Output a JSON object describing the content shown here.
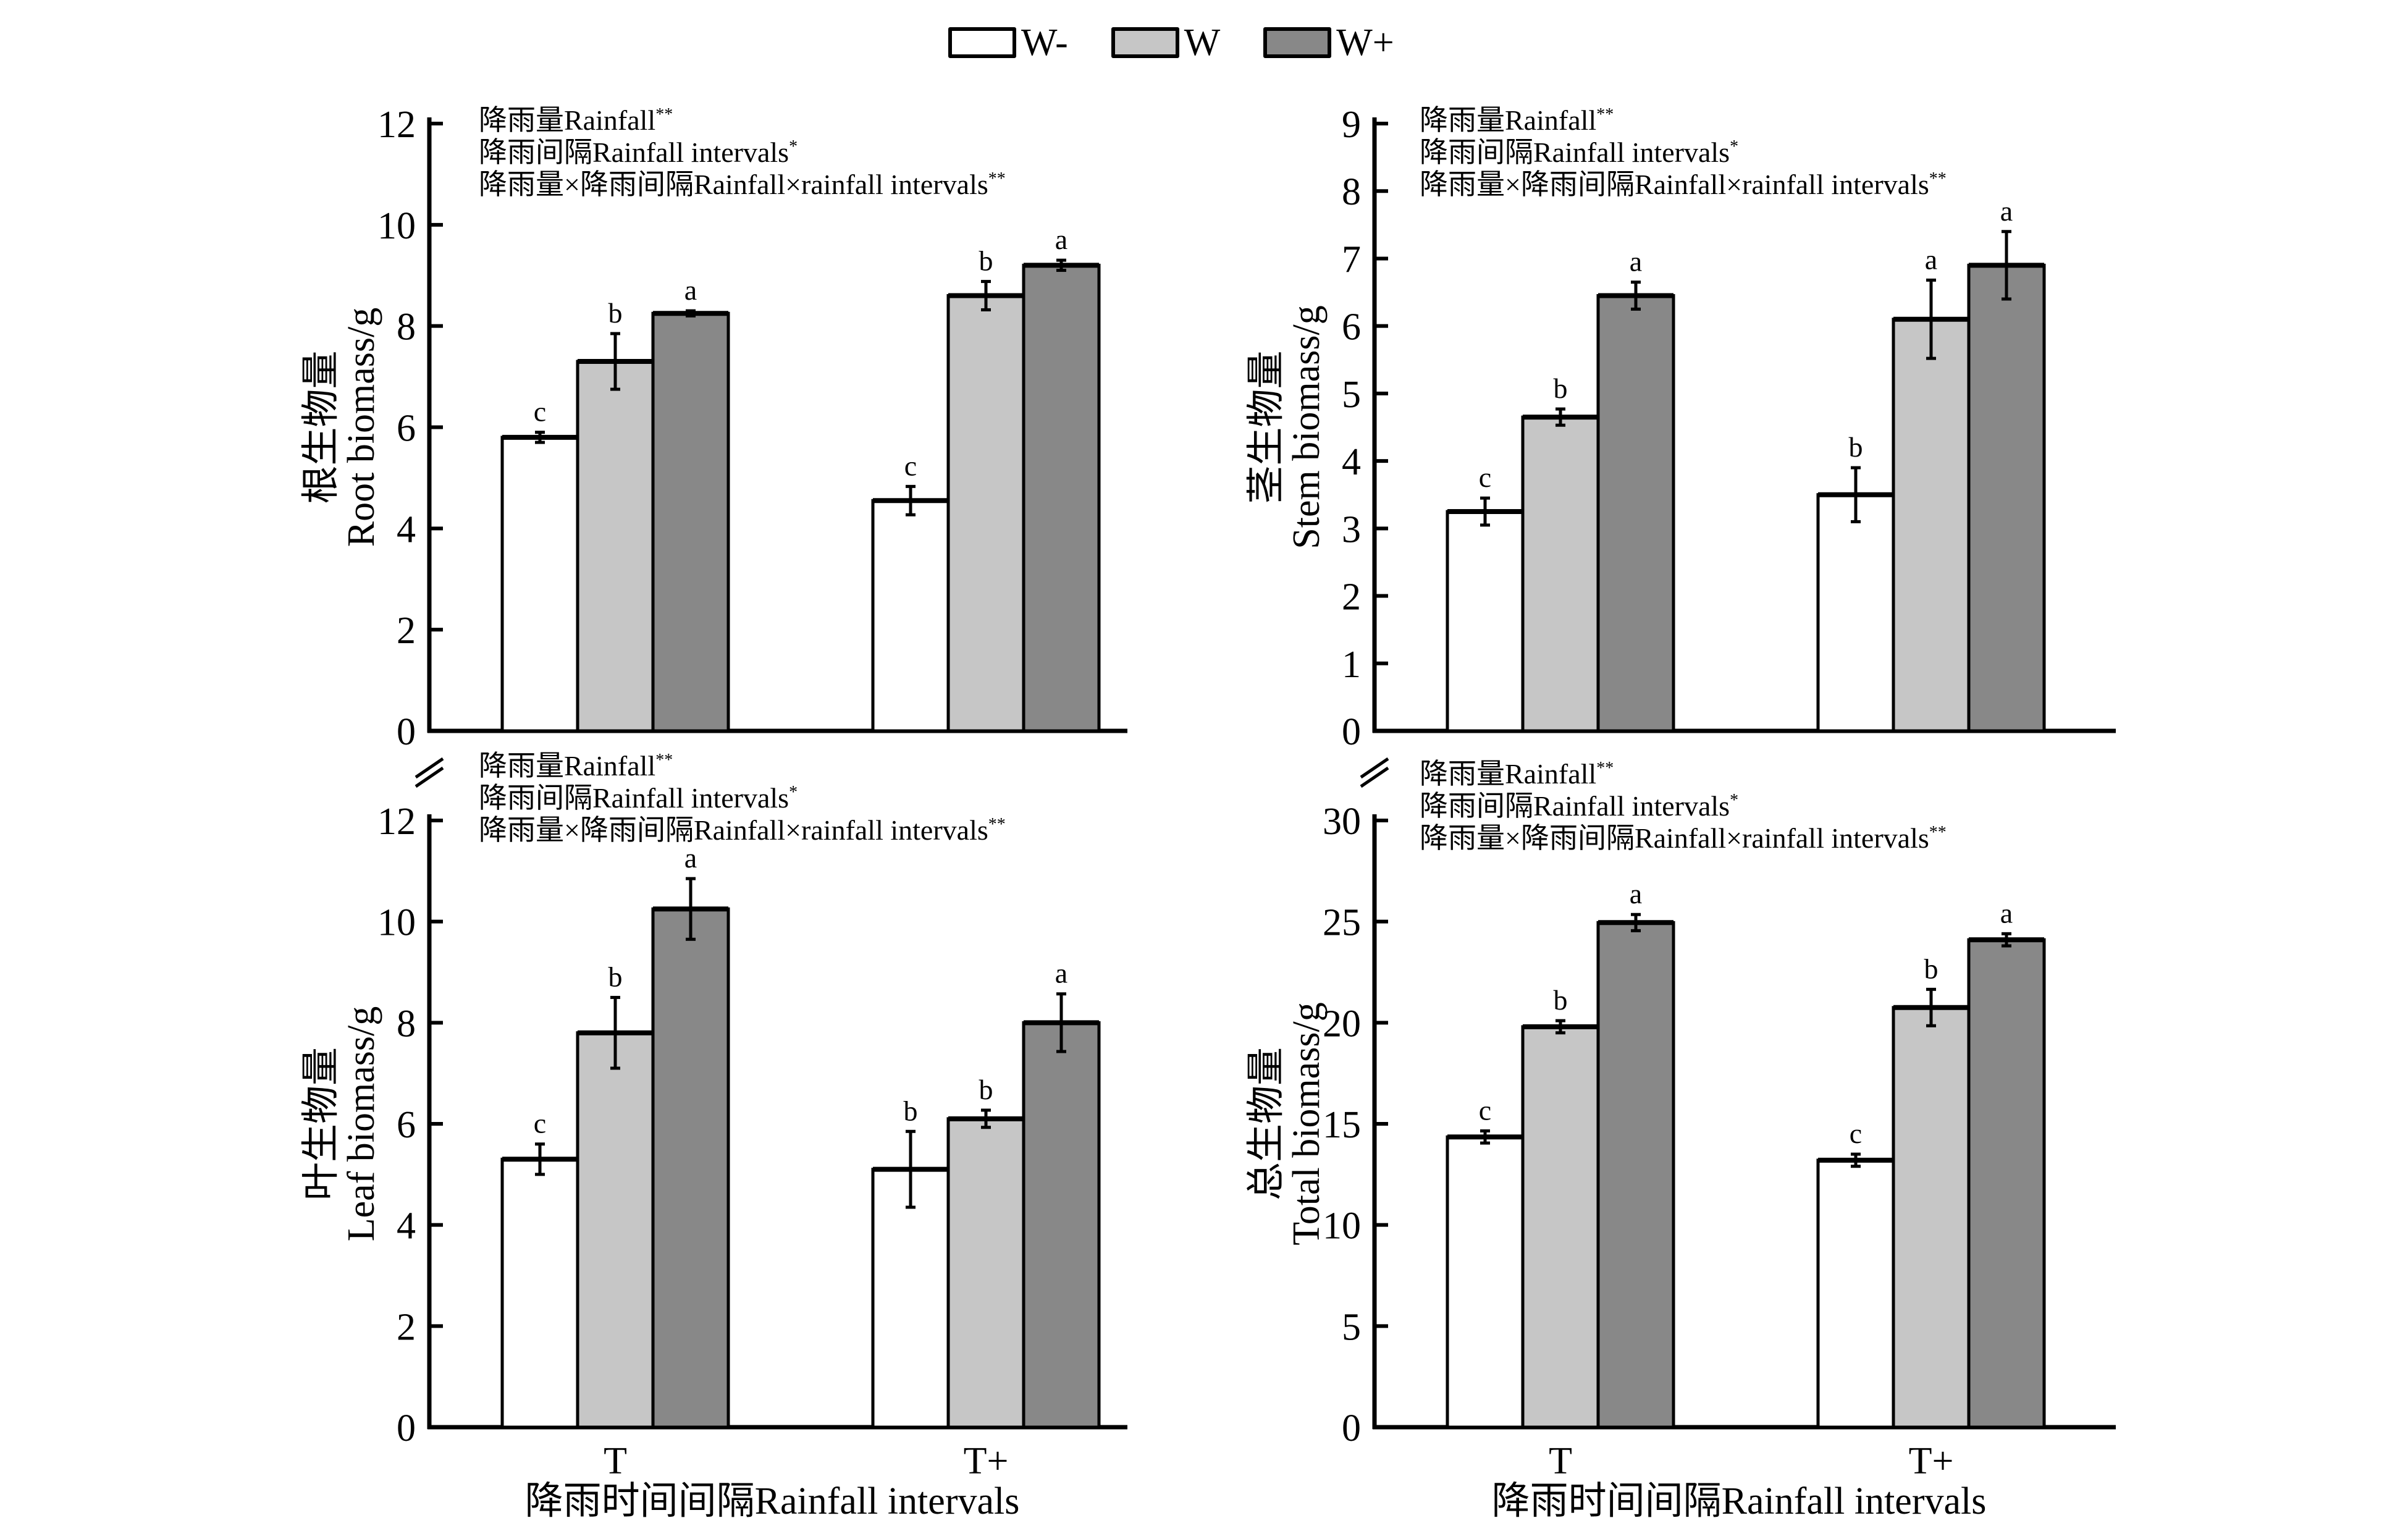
{
  "legend": [
    {
      "label": "W-",
      "color": "#ffffff"
    },
    {
      "label": "W",
      "color": "#c6c6c6"
    },
    {
      "label": "W+",
      "color": "#888888"
    }
  ],
  "chart_data": [
    {
      "type": "bar",
      "panel": "top-left",
      "ylabel_cn": "根生物量",
      "ylabel": "Root biomass/g",
      "xlabel": "",
      "ylim": [
        0,
        12
      ],
      "yticks": [
        0,
        2,
        4,
        6,
        8,
        10,
        12
      ],
      "categories": [
        "T",
        "T+"
      ],
      "show_xticklabels": false,
      "annotations": [
        "降雨量Rainfall**",
        "降雨间隔Rainfall intervals*",
        "降雨量×降雨间隔Rainfall×rainfall intervals**"
      ],
      "series": [
        {
          "name": "W-",
          "values": [
            5.8,
            4.55
          ],
          "errors": [
            0.1,
            0.28
          ],
          "letters": [
            "c",
            "c"
          ]
        },
        {
          "name": "W",
          "values": [
            7.3,
            8.6
          ],
          "errors": [
            0.55,
            0.28
          ],
          "letters": [
            "b",
            "b"
          ]
        },
        {
          "name": "W+",
          "values": [
            8.25,
            9.2
          ],
          "errors": [
            0.05,
            0.1
          ],
          "letters": [
            "a",
            "a"
          ]
        }
      ]
    },
    {
      "type": "bar",
      "panel": "top-right",
      "ylabel_cn": "茎生物量",
      "ylabel": "Stem biomass/g",
      "xlabel": "",
      "ylim": [
        0,
        9
      ],
      "yticks": [
        0,
        1,
        2,
        3,
        4,
        5,
        6,
        7,
        8,
        9
      ],
      "categories": [
        "T",
        "T+"
      ],
      "show_xticklabels": false,
      "annotations": [
        "降雨量Rainfall**",
        "降雨间隔Rainfall intervals*",
        "降雨量×降雨间隔Rainfall×rainfall intervals**"
      ],
      "series": [
        {
          "name": "W-",
          "values": [
            3.25,
            3.5
          ],
          "errors": [
            0.2,
            0.4
          ],
          "letters": [
            "c",
            "b"
          ]
        },
        {
          "name": "W",
          "values": [
            4.65,
            6.1
          ],
          "errors": [
            0.12,
            0.58
          ],
          "letters": [
            "b",
            "a"
          ]
        },
        {
          "name": "W+",
          "values": [
            6.45,
            6.9
          ],
          "errors": [
            0.2,
            0.5
          ],
          "letters": [
            "a",
            "a"
          ]
        }
      ]
    },
    {
      "type": "bar",
      "panel": "bottom-left",
      "ylabel_cn": "叶生物量",
      "ylabel": "Leaf biomass/g",
      "xlabel": "降雨时间间隔Rainfall intervals",
      "ylim": [
        0,
        12
      ],
      "yticks": [
        0,
        2,
        4,
        6,
        8,
        10,
        12
      ],
      "categories": [
        "T",
        "T+"
      ],
      "show_xticklabels": true,
      "axis_break": true,
      "annotations": [
        "降雨量Rainfall**",
        "降雨间隔Rainfall intervals*",
        "降雨量×降雨间隔Rainfall×rainfall intervals**"
      ],
      "series": [
        {
          "name": "W-",
          "values": [
            5.3,
            5.1
          ],
          "errors": [
            0.3,
            0.75
          ],
          "letters": [
            "c",
            "b"
          ]
        },
        {
          "name": "W",
          "values": [
            7.8,
            6.1
          ],
          "errors": [
            0.7,
            0.17
          ],
          "letters": [
            "b",
            "b"
          ]
        },
        {
          "name": "W+",
          "values": [
            10.25,
            8.0
          ],
          "errors": [
            0.6,
            0.57
          ],
          "letters": [
            "a",
            "a"
          ]
        }
      ]
    },
    {
      "type": "bar",
      "panel": "bottom-right",
      "ylabel_cn": "总生物量",
      "ylabel": "Total biomass/g",
      "xlabel": "降雨时间间隔Rainfall intervals",
      "ylim": [
        0,
        30
      ],
      "yticks": [
        0,
        5,
        10,
        15,
        20,
        25,
        30
      ],
      "categories": [
        "T",
        "T+"
      ],
      "show_xticklabels": true,
      "axis_break": true,
      "annotations": [
        "降雨量Rainfall**",
        "降雨间隔Rainfall intervals*",
        "降雨量×降雨间隔Rainfall×rainfall intervals**"
      ],
      "series": [
        {
          "name": "W-",
          "values": [
            14.35,
            13.2
          ],
          "errors": [
            0.3,
            0.3
          ],
          "letters": [
            "c",
            "c"
          ]
        },
        {
          "name": "W",
          "values": [
            19.8,
            20.75
          ],
          "errors": [
            0.3,
            0.9
          ],
          "letters": [
            "b",
            "b"
          ]
        },
        {
          "name": "W+",
          "values": [
            24.95,
            24.1
          ],
          "errors": [
            0.4,
            0.3
          ],
          "letters": [
            "a",
            "a"
          ]
        }
      ]
    }
  ]
}
